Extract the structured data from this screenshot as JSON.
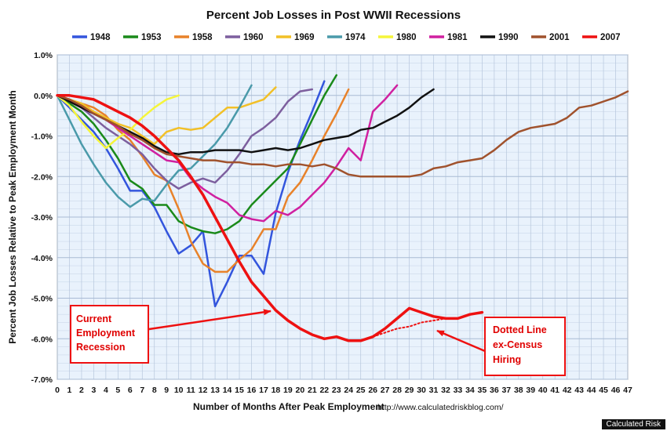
{
  "chart_data": {
    "type": "line",
    "title": "Percent Job Losses in Post WWII Recessions",
    "xlabel": "Number of Months After Peak Employment",
    "ylabel": "Percent Job Losses Relative to Peak Employment Month",
    "source_url": "http://www.calculatedriskblog.com/",
    "x_ticks": [
      "0",
      "1",
      "2",
      "3",
      "4",
      "5",
      "6",
      "7",
      "8",
      "9",
      "10",
      "11",
      "12",
      "13",
      "14",
      "15",
      "16",
      "17",
      "18",
      "19",
      "20",
      "21",
      "22",
      "23",
      "24",
      "25",
      "26",
      "27",
      "28",
      "29",
      "30",
      "31",
      "32",
      "33",
      "34",
      "35",
      "36",
      "37",
      "38",
      "39",
      "40",
      "41",
      "42",
      "43",
      "44",
      "45",
      "46",
      "47"
    ],
    "y_ticks": [
      "1.0%",
      "0.0%",
      "-1.0%",
      "-2.0%",
      "-3.0%",
      "-4.0%",
      "-5.0%",
      "-6.0%",
      "-7.0%"
    ],
    "xlim": [
      0,
      47
    ],
    "ylim": [
      -7.0,
      1.0
    ],
    "grid": true,
    "legend_position": "top",
    "series": [
      {
        "name": "1948",
        "color": "#3355dd",
        "width": 2.5,
        "x": [
          0,
          1,
          2,
          3,
          4,
          5,
          6,
          7,
          8,
          9,
          10,
          11,
          12,
          13,
          14,
          15,
          16,
          17,
          18,
          19,
          20,
          21,
          22
        ],
        "y": [
          0,
          -0.3,
          -0.6,
          -0.9,
          -1.3,
          -1.8,
          -2.35,
          -2.35,
          -2.75,
          -3.35,
          -3.9,
          -3.7,
          -3.35,
          -5.2,
          -4.6,
          -3.95,
          -3.95,
          -4.4,
          -2.9,
          -1.9,
          -1.1,
          -0.4,
          0.35
        ]
      },
      {
        "name": "1953",
        "color": "#1a8a1a",
        "width": 2.5,
        "x": [
          0,
          1,
          2,
          3,
          4,
          5,
          6,
          7,
          8,
          9,
          10,
          11,
          12,
          13,
          14,
          15,
          16,
          17,
          18,
          19,
          20,
          21,
          22,
          23
        ],
        "y": [
          0,
          -0.2,
          -0.4,
          -0.7,
          -1.1,
          -1.55,
          -2.1,
          -2.3,
          -2.7,
          -2.7,
          -3.1,
          -3.25,
          -3.35,
          -3.4,
          -3.3,
          -3.1,
          -2.7,
          -2.4,
          -2.1,
          -1.8,
          -1.2,
          -0.6,
          0.0,
          0.5
        ]
      },
      {
        "name": "1958",
        "color": "#e8822a",
        "width": 2.5,
        "x": [
          0,
          1,
          2,
          3,
          4,
          5,
          6,
          7,
          8,
          9,
          10,
          11,
          12,
          13,
          14,
          15,
          16,
          17,
          18,
          19,
          20,
          21,
          22,
          23,
          24
        ],
        "y": [
          0,
          -0.1,
          -0.2,
          -0.3,
          -0.5,
          -0.85,
          -1.1,
          -1.5,
          -1.95,
          -2.1,
          -2.8,
          -3.6,
          -4.15,
          -4.35,
          -4.35,
          -4.05,
          -3.8,
          -3.3,
          -3.3,
          -2.5,
          -2.15,
          -1.6,
          -1.0,
          -0.45,
          0.15
        ]
      },
      {
        "name": "1960",
        "color": "#7d5f9e",
        "width": 2.5,
        "x": [
          0,
          1,
          2,
          3,
          4,
          5,
          6,
          7,
          8,
          9,
          10,
          11,
          12,
          13,
          14,
          15,
          16,
          17,
          18,
          19,
          20,
          21
        ],
        "y": [
          0,
          -0.1,
          -0.3,
          -0.55,
          -0.8,
          -1.0,
          -1.2,
          -1.45,
          -1.8,
          -2.1,
          -2.3,
          -2.15,
          -2.05,
          -2.15,
          -1.85,
          -1.45,
          -1.0,
          -0.8,
          -0.55,
          -0.15,
          0.1,
          0.15
        ]
      },
      {
        "name": "1969",
        "color": "#f2c027",
        "width": 2.5,
        "x": [
          0,
          1,
          2,
          3,
          4,
          5,
          6,
          7,
          8,
          9,
          10,
          11,
          12,
          13,
          14,
          15,
          16,
          17,
          18
        ],
        "y": [
          0,
          -0.1,
          -0.2,
          -0.4,
          -0.55,
          -0.7,
          -0.8,
          -1.0,
          -1.2,
          -0.9,
          -0.8,
          -0.85,
          -0.8,
          -0.55,
          -0.3,
          -0.3,
          -0.2,
          -0.1,
          0.2
        ]
      },
      {
        "name": "1974",
        "color": "#4a9aaa",
        "width": 2.5,
        "x": [
          0,
          1,
          2,
          3,
          4,
          5,
          6,
          7,
          8,
          9,
          10,
          11,
          12,
          13,
          14,
          15,
          16
        ],
        "y": [
          0,
          -0.6,
          -1.2,
          -1.7,
          -2.15,
          -2.5,
          -2.75,
          -2.55,
          -2.6,
          -2.2,
          -1.85,
          -1.8,
          -1.5,
          -1.2,
          -0.8,
          -0.3,
          0.25
        ]
      },
      {
        "name": "1980",
        "color": "#f5f53a",
        "width": 2.5,
        "x": [
          0,
          1,
          2,
          3,
          4,
          5,
          6,
          7,
          8,
          9,
          10
        ],
        "y": [
          0,
          -0.25,
          -0.65,
          -1.0,
          -1.3,
          -1.05,
          -0.85,
          -0.55,
          -0.3,
          -0.1,
          0.0
        ]
      },
      {
        "name": "1981",
        "color": "#d020a0",
        "width": 2.5,
        "x": [
          0,
          1,
          2,
          3,
          4,
          5,
          6,
          7,
          8,
          9,
          10,
          11,
          12,
          13,
          14,
          15,
          16,
          17,
          18,
          19,
          20,
          21,
          22,
          23,
          24,
          25,
          26,
          27,
          28
        ],
        "y": [
          0,
          -0.15,
          -0.3,
          -0.45,
          -0.6,
          -0.8,
          -1.0,
          -1.2,
          -1.4,
          -1.6,
          -1.65,
          -2.05,
          -2.3,
          -2.5,
          -2.65,
          -2.95,
          -3.05,
          -3.1,
          -2.85,
          -2.95,
          -2.75,
          -2.45,
          -2.15,
          -1.75,
          -1.3,
          -1.6,
          -0.4,
          -0.1,
          0.25
        ]
      },
      {
        "name": "1990",
        "color": "#111111",
        "width": 2.5,
        "x": [
          0,
          1,
          2,
          3,
          4,
          5,
          6,
          7,
          8,
          9,
          10,
          11,
          12,
          13,
          14,
          15,
          16,
          17,
          18,
          19,
          20,
          21,
          22,
          23,
          24,
          25,
          26,
          27,
          28,
          29,
          30,
          31
        ],
        "y": [
          0,
          -0.15,
          -0.3,
          -0.45,
          -0.6,
          -0.75,
          -0.9,
          -1.05,
          -1.25,
          -1.4,
          -1.45,
          -1.4,
          -1.4,
          -1.35,
          -1.35,
          -1.35,
          -1.4,
          -1.35,
          -1.3,
          -1.35,
          -1.3,
          -1.2,
          -1.1,
          -1.05,
          -1.0,
          -0.85,
          -0.8,
          -0.65,
          -0.5,
          -0.3,
          -0.05,
          0.15
        ]
      },
      {
        "name": "2001",
        "color": "#a0522d",
        "width": 2.5,
        "x": [
          0,
          1,
          2,
          3,
          4,
          5,
          6,
          7,
          8,
          9,
          10,
          11,
          12,
          13,
          14,
          15,
          16,
          17,
          18,
          19,
          20,
          21,
          22,
          23,
          24,
          25,
          26,
          27,
          28,
          29,
          30,
          31,
          32,
          33,
          34,
          35,
          36,
          37,
          38,
          39,
          40,
          41,
          42,
          43,
          44,
          45,
          46,
          47
        ],
        "y": [
          0,
          -0.1,
          -0.25,
          -0.45,
          -0.6,
          -0.75,
          -0.95,
          -1.1,
          -1.3,
          -1.45,
          -1.5,
          -1.55,
          -1.6,
          -1.6,
          -1.65,
          -1.65,
          -1.7,
          -1.7,
          -1.75,
          -1.7,
          -1.7,
          -1.75,
          -1.7,
          -1.8,
          -1.95,
          -2.0,
          -2.0,
          -2.0,
          -2.0,
          -2.0,
          -1.95,
          -1.8,
          -1.75,
          -1.65,
          -1.6,
          -1.55,
          -1.35,
          -1.1,
          -0.9,
          -0.8,
          -0.75,
          -0.7,
          -0.55,
          -0.3,
          -0.25,
          -0.15,
          -0.05,
          0.1
        ]
      },
      {
        "name": "2007",
        "color": "#ee1111",
        "width": 3.5,
        "x": [
          0,
          1,
          2,
          3,
          4,
          5,
          6,
          7,
          8,
          9,
          10,
          11,
          12,
          13,
          14,
          15,
          16,
          17,
          18,
          19,
          20,
          21,
          22,
          23,
          24,
          25,
          26,
          27,
          28,
          29,
          30,
          31,
          32,
          33,
          34,
          35
        ],
        "y": [
          0,
          0.0,
          -0.05,
          -0.1,
          -0.25,
          -0.4,
          -0.55,
          -0.75,
          -1.0,
          -1.3,
          -1.6,
          -2.0,
          -2.45,
          -3.0,
          -3.55,
          -4.1,
          -4.6,
          -4.95,
          -5.3,
          -5.55,
          -5.75,
          -5.9,
          -6.0,
          -5.95,
          -6.05,
          -6.05,
          -5.95,
          -5.75,
          -5.5,
          -5.25,
          -5.35,
          -5.45,
          -5.5,
          -5.5,
          -5.4,
          -5.35
        ]
      },
      {
        "name": "2007 ex-Census",
        "legend": false,
        "dotted": true,
        "color": "#ee1111",
        "width": 2,
        "x": [
          26,
          27,
          28,
          29,
          30,
          31,
          32,
          33,
          34,
          35
        ],
        "y": [
          -5.95,
          -5.85,
          -5.75,
          -5.7,
          -5.6,
          -5.55,
          -5.5,
          -5.5,
          -5.4,
          -5.35
        ]
      }
    ],
    "annotations": [
      {
        "id": "current",
        "lines": [
          "Current",
          "Employment",
          "Recession"
        ]
      },
      {
        "id": "dotted",
        "lines": [
          "Dotted Line",
          "ex-Census",
          "Hiring"
        ]
      }
    ]
  },
  "credit": "Calculated Risk"
}
